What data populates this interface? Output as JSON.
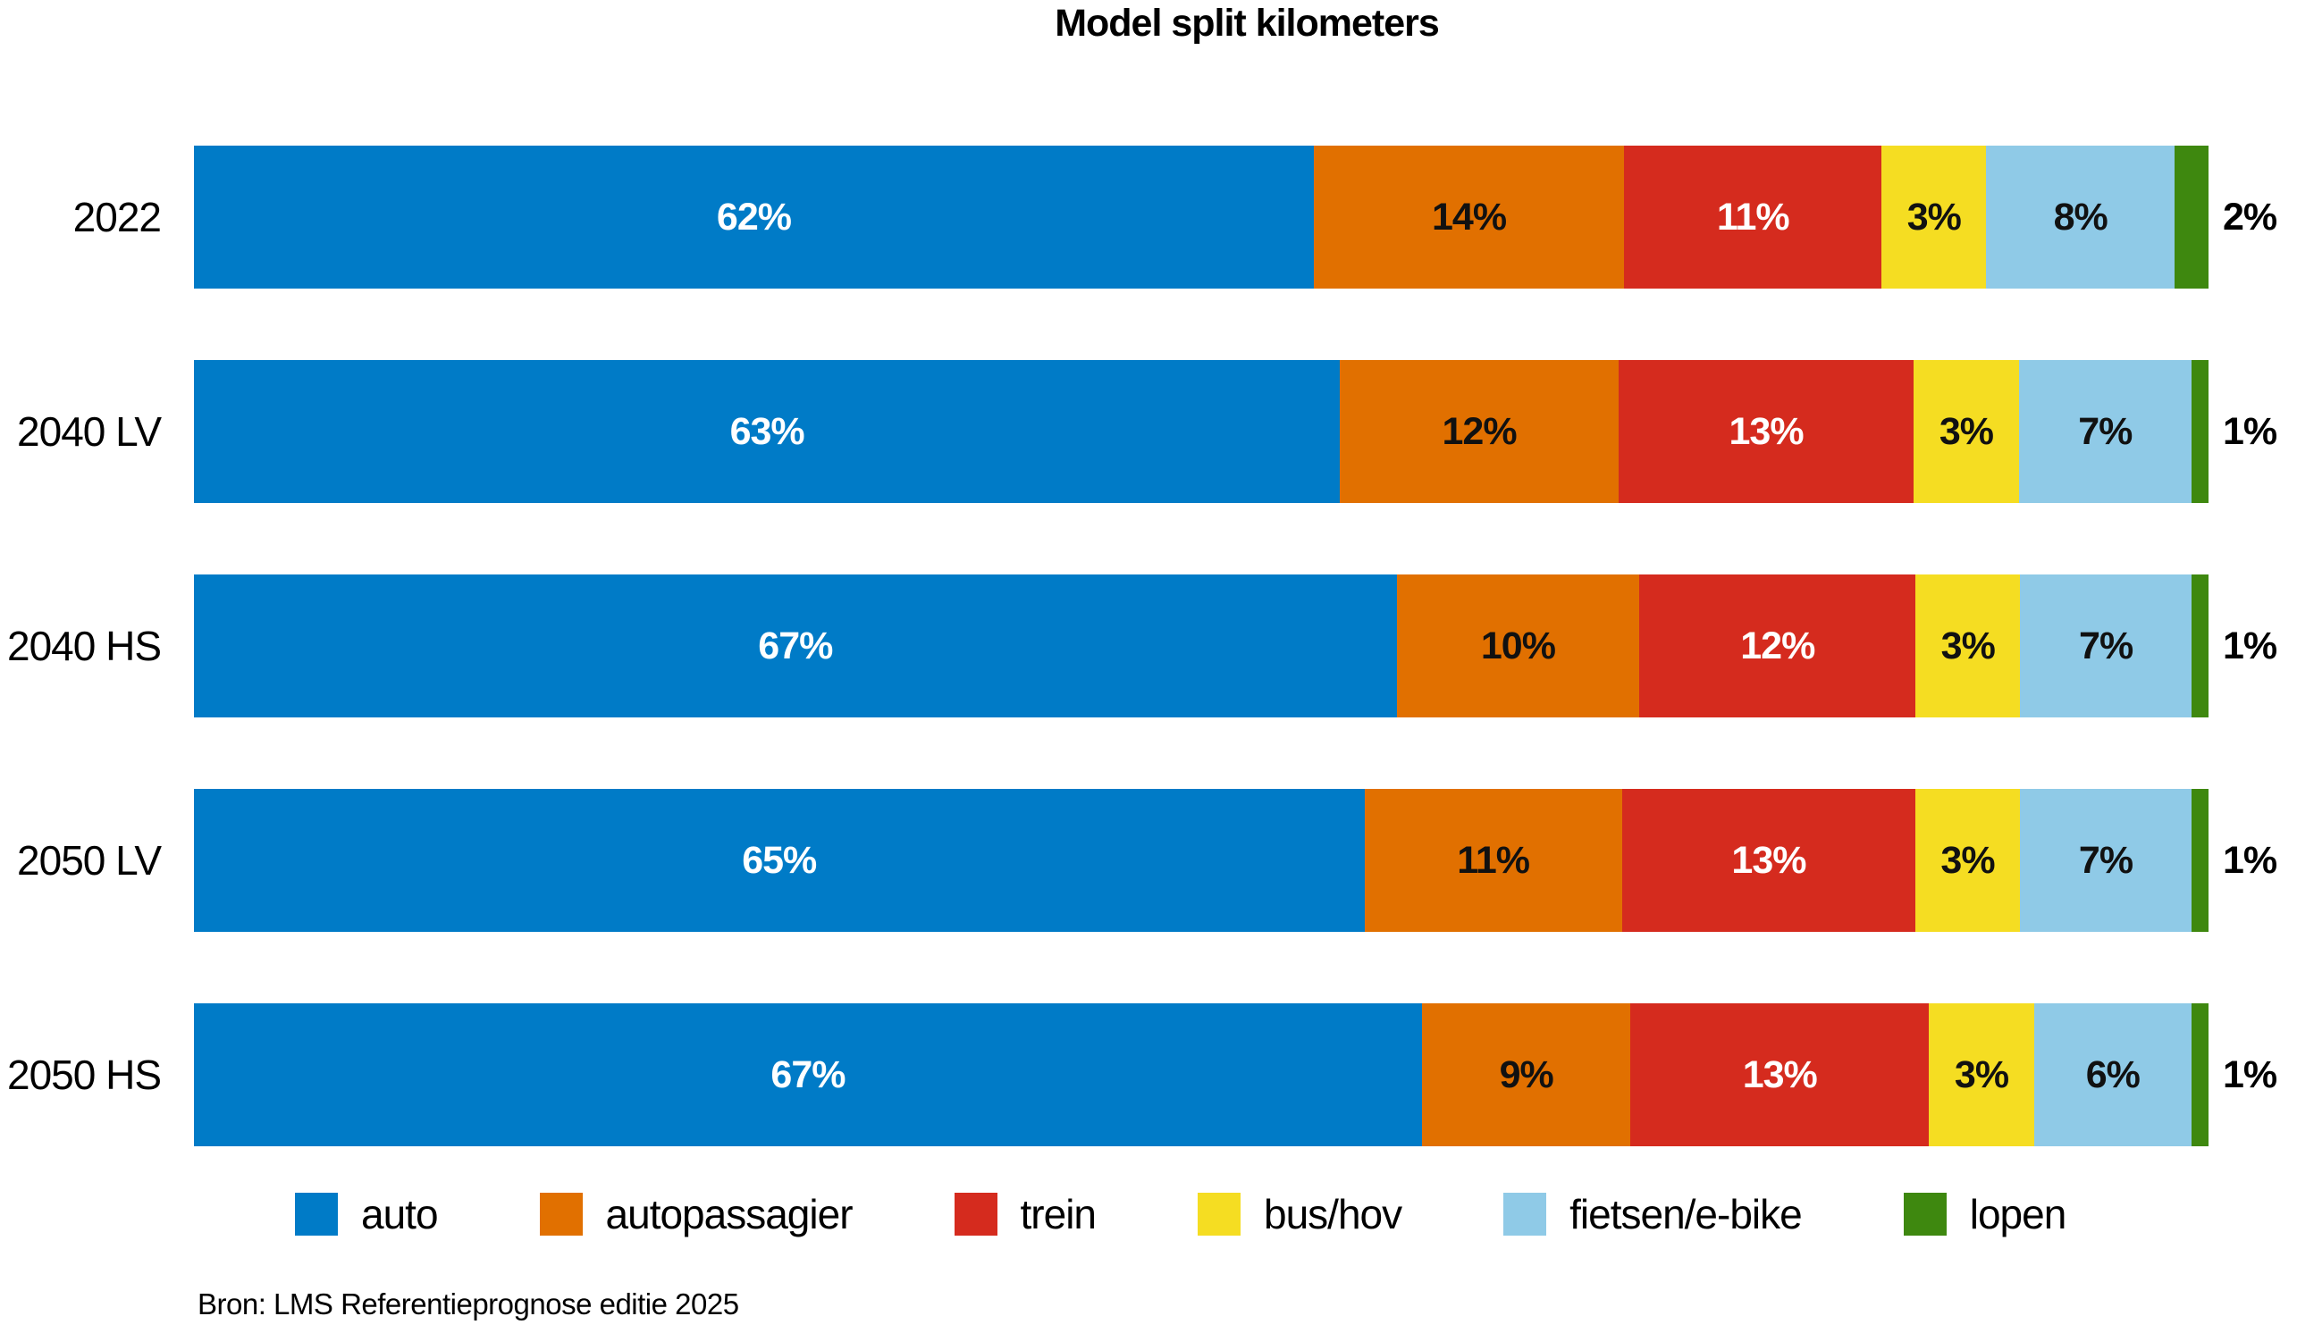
{
  "title": "Model split kilometers",
  "source": "Bron: LMS Referentieprognose editie 2025",
  "chart_data": {
    "type": "bar",
    "orientation": "horizontal-stacked",
    "title": "Model split kilometers",
    "categories": [
      "2022",
      "2040 LV",
      "2040 HS",
      "2050 LV",
      "2050 HS"
    ],
    "series": [
      {
        "name": "auto",
        "color": "#007BC7",
        "label_color": "#ffffff",
        "values": [
          62,
          63,
          67,
          65,
          67
        ]
      },
      {
        "name": "autopassagier",
        "color": "#E17000",
        "label_color": "#111111",
        "values": [
          14,
          12,
          10,
          11,
          9
        ]
      },
      {
        "name": "trein",
        "color": "#D52B1E",
        "label_color": "#ffffff",
        "values": [
          11,
          13,
          12,
          13,
          13
        ]
      },
      {
        "name": "bus/hov",
        "color": "#F5DD22",
        "label_color": "#111111",
        "values": [
          3,
          3,
          3,
          3,
          3
        ]
      },
      {
        "name": "fietsen/e-bike",
        "color": "#8FCAE7",
        "label_color": "#111111",
        "values": [
          8,
          7,
          7,
          7,
          6
        ]
      },
      {
        "name": "lopen",
        "color": "#3E880F",
        "label_color": "#111111",
        "label_outside": true,
        "values": [
          2,
          1,
          1,
          1,
          1
        ]
      }
    ],
    "value_suffix": "%",
    "xlim": [
      0,
      100
    ],
    "grid": false,
    "legend_position": "bottom",
    "source": "Bron: LMS Referentieprognose editie 2025"
  }
}
